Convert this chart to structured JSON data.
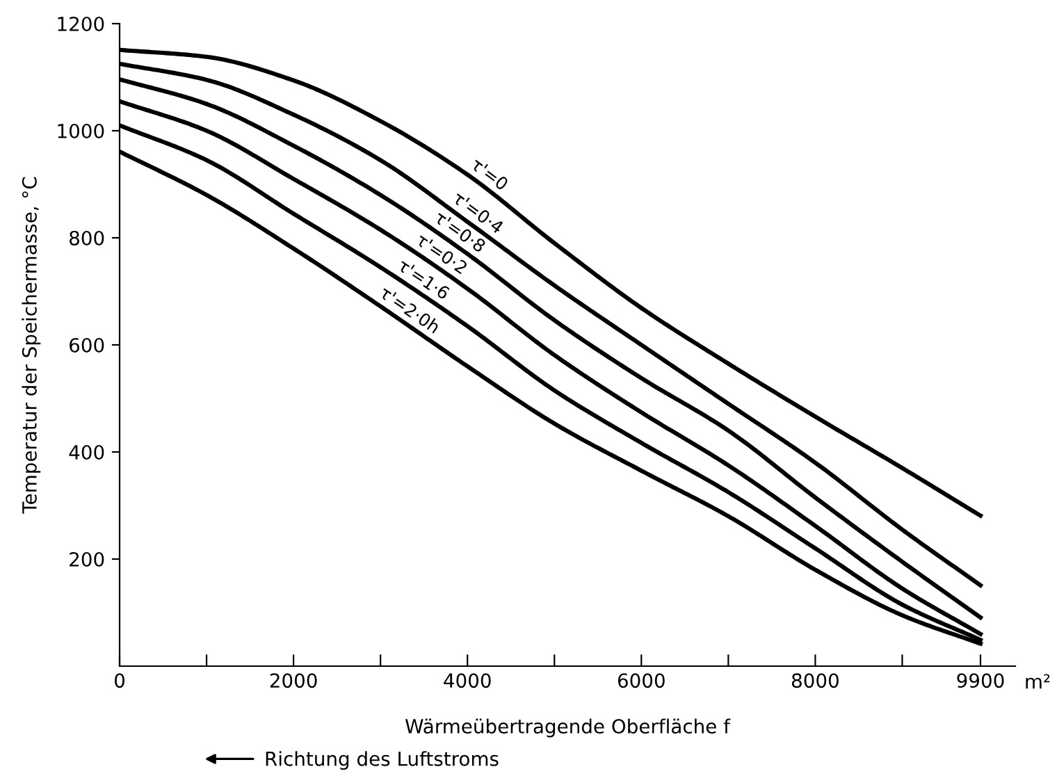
{
  "chart_data": {
    "type": "line",
    "xlabel": "Wärmeübertragende Oberfläche f",
    "ylabel": "Temperatur der Speichermasse, °C",
    "x": [
      0,
      1000,
      2000,
      3000,
      4000,
      5000,
      6000,
      7000,
      8000,
      9000,
      9900
    ],
    "series": [
      {
        "name": "τ'=0",
        "color": "#000000",
        "values": [
          1151,
          1138,
          1094,
          1018,
          918,
          790,
          669,
          565,
          466,
          370,
          281
        ]
      },
      {
        "name": "τ'=0·4",
        "color": "#000000",
        "values": [
          1125,
          1095,
          1030,
          945,
          830,
          711,
          600,
          490,
          380,
          255,
          151
        ]
      },
      {
        "name": "τ'=0·8",
        "color": "#000000",
        "values": [
          1096,
          1050,
          972,
          880,
          770,
          646,
          538,
          440,
          315,
          195,
          91
        ]
      },
      {
        "name": "τ'=0·2",
        "color": "#000000",
        "values": [
          1055,
          1000,
          910,
          815,
          705,
          581,
          474,
          375,
          262,
          145,
          60
        ]
      },
      {
        "name": "τ'=1·6",
        "color": "#000000",
        "values": [
          1010,
          945,
          845,
          745,
          635,
          515,
          417,
          325,
          220,
          115,
          49
        ]
      },
      {
        "name": "τ'=2·0h",
        "color": "#000000",
        "values": [
          961,
          880,
          780,
          672,
          560,
          453,
          365,
          280,
          180,
          95,
          42
        ]
      }
    ],
    "xlim": [
      0,
      10300
    ],
    "ylim": [
      0,
      1200
    ],
    "xticks": [
      0,
      {
        "value": 1000,
        "label": null
      },
      2000,
      {
        "value": 3000,
        "label": null
      },
      4000,
      {
        "value": 5000,
        "label": null
      },
      6000,
      {
        "value": 7000,
        "label": null
      },
      8000,
      {
        "value": 9000,
        "label": null
      },
      9900
    ],
    "yticks": [
      200,
      400,
      600,
      800,
      1000,
      1200
    ],
    "annotations": [
      "m²",
      "Richtung des Luftstroms"
    ],
    "legend": false,
    "grid": false,
    "marker": "none",
    "line_style": "solid"
  }
}
